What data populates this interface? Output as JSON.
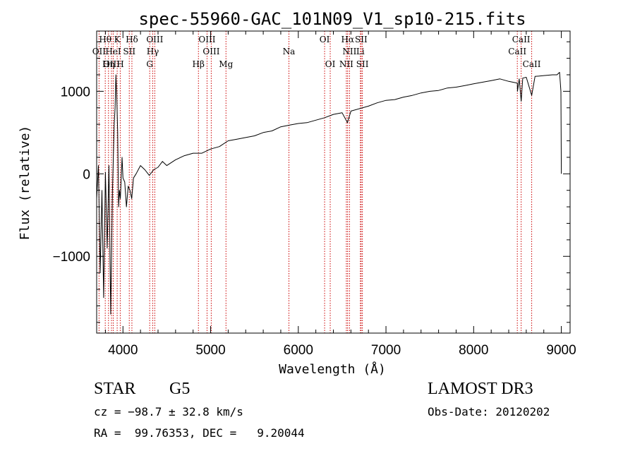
{
  "chart_data": {
    "type": "line",
    "title": "spec-55960-GAC_101N09_V1_sp10-215.fits",
    "xlabel": "Wavelength (Å)",
    "ylabel": "Flux (relative)",
    "xlim": [
      3700,
      9100
    ],
    "ylim": [
      -1930,
      1730
    ],
    "xticks": [
      4000,
      5000,
      6000,
      7000,
      8000,
      9000
    ],
    "xtick_labels": [
      "4000",
      "5000",
      "6000",
      "7000",
      "8000",
      "9000"
    ],
    "yticks": [
      -1000,
      0,
      1000
    ],
    "ytick_labels": [
      "−1000",
      "0",
      "1000"
    ],
    "grid": false,
    "series": [
      {
        "name": "spectrum",
        "x": [
          3700,
          3720,
          3740,
          3760,
          3780,
          3800,
          3820,
          3840,
          3860,
          3880,
          3900,
          3910,
          3920,
          3930,
          3940,
          3950,
          3960,
          3970,
          3990,
          4000,
          4020,
          4040,
          4060,
          4080,
          4100,
          4120,
          4150,
          4200,
          4250,
          4300,
          4350,
          4400,
          4450,
          4500,
          4600,
          4700,
          4800,
          4900,
          5000,
          5100,
          5200,
          5300,
          5400,
          5500,
          5600,
          5700,
          5800,
          5900,
          6000,
          6100,
          6200,
          6300,
          6400,
          6500,
          6560,
          6600,
          6700,
          6800,
          6900,
          7000,
          7100,
          7200,
          7300,
          7400,
          7500,
          7600,
          7700,
          7800,
          7900,
          8000,
          8100,
          8200,
          8300,
          8400,
          8498,
          8500,
          8520,
          8542,
          8560,
          8600,
          8662,
          8700,
          8800,
          8900,
          8950,
          8980,
          8995,
          9000
        ],
        "y": [
          -300,
          100,
          -1200,
          -200,
          -1500,
          20,
          -900,
          100,
          -1700,
          -200,
          600,
          800,
          1200,
          900,
          500,
          -400,
          -200,
          -300,
          200,
          -50,
          -100,
          -400,
          -150,
          -200,
          -300,
          -50,
          0,
          100,
          50,
          -20,
          50,
          80,
          150,
          100,
          170,
          220,
          250,
          250,
          300,
          330,
          400,
          420,
          440,
          460,
          500,
          520,
          570,
          590,
          610,
          620,
          650,
          680,
          720,
          740,
          620,
          760,
          790,
          820,
          860,
          890,
          900,
          930,
          950,
          980,
          1000,
          1010,
          1040,
          1050,
          1070,
          1090,
          1110,
          1130,
          1150,
          1120,
          1100,
          1000,
          1150,
          880,
          1160,
          1170,
          950,
          1180,
          1190,
          1200,
          1200,
          1230,
          1000,
          0
        ]
      }
    ],
    "spectral_lines": [
      {
        "label": "Hθ",
        "wavelength": 3798,
        "row": 0
      },
      {
        "label": "K",
        "wavelength": 3934,
        "row": 0
      },
      {
        "label": "Hδ",
        "wavelength": 4102,
        "row": 0
      },
      {
        "label": "OIII",
        "wavelength": 4363,
        "row": 0
      },
      {
        "label": "OIII",
        "wavelength": 4959,
        "row": 0
      },
      {
        "label": "OI",
        "wavelength": 6300,
        "row": 0
      },
      {
        "label": "Hα",
        "wavelength": 6563,
        "row": 0
      },
      {
        "label": "SII",
        "wavelength": 6717,
        "row": 0
      },
      {
        "label": "CaII",
        "wavelength": 8542,
        "row": 0
      },
      {
        "label": "OII",
        "wavelength": 3727,
        "row": 1
      },
      {
        "label": "HeI",
        "wavelength": 3889,
        "row": 1
      },
      {
        "label": "SII",
        "wavelength": 4072,
        "row": 1
      },
      {
        "label": "Hγ",
        "wavelength": 4340,
        "row": 1
      },
      {
        "label": "OIII",
        "wavelength": 5007,
        "row": 1
      },
      {
        "label": "Na",
        "wavelength": 5893,
        "row": 1
      },
      {
        "label": "NII",
        "wavelength": 6584,
        "row": 1
      },
      {
        "label": "Li",
        "wavelength": 6708,
        "row": 1
      },
      {
        "label": "CaII",
        "wavelength": 8498,
        "row": 1
      },
      {
        "label": "OIII",
        "wavelength": 3869,
        "row": 2
      },
      {
        "label": "Hη",
        "wavelength": 3835,
        "row": 2
      },
      {
        "label": "H",
        "wavelength": 3969,
        "row": 2
      },
      {
        "label": "G",
        "wavelength": 4305,
        "row": 2
      },
      {
        "label": "Hβ",
        "wavelength": 4861,
        "row": 2
      },
      {
        "label": "Mg",
        "wavelength": 5175,
        "row": 2
      },
      {
        "label": "OI",
        "wavelength": 6364,
        "row": 2
      },
      {
        "label": "NII",
        "wavelength": 6548,
        "row": 2
      },
      {
        "label": "SII",
        "wavelength": 6731,
        "row": 2
      },
      {
        "label": "CaII",
        "wavelength": 8662,
        "row": 2
      }
    ],
    "colors": {
      "spectrum": "#000000",
      "line_marker": "#cc0000"
    }
  },
  "info": {
    "object_class": "STAR",
    "subclass": "G5",
    "survey": "LAMOST DR3",
    "cz": "cz = −98.7 ± 32.8 km/s",
    "obs_date": "Obs-Date: 20120202",
    "coords": "RA =  99.76353, DEC =   9.20044"
  }
}
